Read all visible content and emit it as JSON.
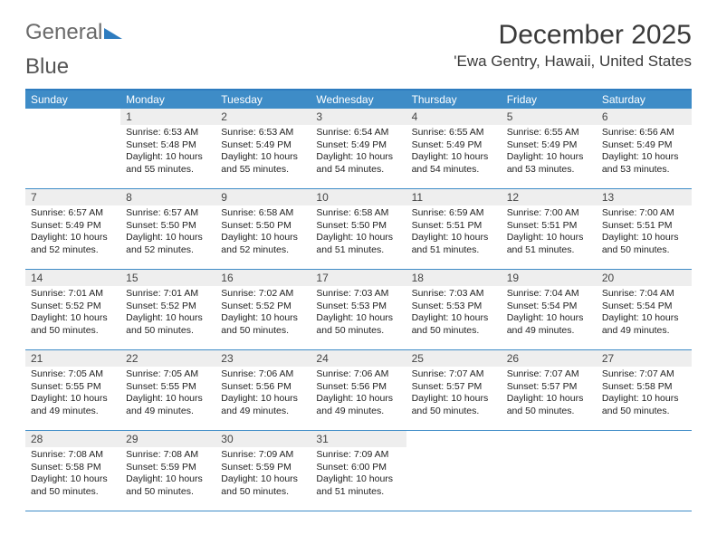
{
  "logo": {
    "text1": "General",
    "text2": "Blue"
  },
  "title": "December 2025",
  "location": "'Ewa Gentry, Hawaii, United States",
  "weekdays": [
    "Sunday",
    "Monday",
    "Tuesday",
    "Wednesday",
    "Thursday",
    "Friday",
    "Saturday"
  ],
  "colors": {
    "header_bg": "#3e8cc7",
    "header_text": "#ffffff",
    "daynum_bg": "#eeeeee",
    "border": "#3e8cc7",
    "page_bg": "#ffffff",
    "body_text": "#222222"
  },
  "weeks": [
    [
      {
        "n": "",
        "sr": "",
        "ss": "",
        "dl": ""
      },
      {
        "n": "1",
        "sr": "Sunrise: 6:53 AM",
        "ss": "Sunset: 5:48 PM",
        "dl": "Daylight: 10 hours and 55 minutes."
      },
      {
        "n": "2",
        "sr": "Sunrise: 6:53 AM",
        "ss": "Sunset: 5:49 PM",
        "dl": "Daylight: 10 hours and 55 minutes."
      },
      {
        "n": "3",
        "sr": "Sunrise: 6:54 AM",
        "ss": "Sunset: 5:49 PM",
        "dl": "Daylight: 10 hours and 54 minutes."
      },
      {
        "n": "4",
        "sr": "Sunrise: 6:55 AM",
        "ss": "Sunset: 5:49 PM",
        "dl": "Daylight: 10 hours and 54 minutes."
      },
      {
        "n": "5",
        "sr": "Sunrise: 6:55 AM",
        "ss": "Sunset: 5:49 PM",
        "dl": "Daylight: 10 hours and 53 minutes."
      },
      {
        "n": "6",
        "sr": "Sunrise: 6:56 AM",
        "ss": "Sunset: 5:49 PM",
        "dl": "Daylight: 10 hours and 53 minutes."
      }
    ],
    [
      {
        "n": "7",
        "sr": "Sunrise: 6:57 AM",
        "ss": "Sunset: 5:49 PM",
        "dl": "Daylight: 10 hours and 52 minutes."
      },
      {
        "n": "8",
        "sr": "Sunrise: 6:57 AM",
        "ss": "Sunset: 5:50 PM",
        "dl": "Daylight: 10 hours and 52 minutes."
      },
      {
        "n": "9",
        "sr": "Sunrise: 6:58 AM",
        "ss": "Sunset: 5:50 PM",
        "dl": "Daylight: 10 hours and 52 minutes."
      },
      {
        "n": "10",
        "sr": "Sunrise: 6:58 AM",
        "ss": "Sunset: 5:50 PM",
        "dl": "Daylight: 10 hours and 51 minutes."
      },
      {
        "n": "11",
        "sr": "Sunrise: 6:59 AM",
        "ss": "Sunset: 5:51 PM",
        "dl": "Daylight: 10 hours and 51 minutes."
      },
      {
        "n": "12",
        "sr": "Sunrise: 7:00 AM",
        "ss": "Sunset: 5:51 PM",
        "dl": "Daylight: 10 hours and 51 minutes."
      },
      {
        "n": "13",
        "sr": "Sunrise: 7:00 AM",
        "ss": "Sunset: 5:51 PM",
        "dl": "Daylight: 10 hours and 50 minutes."
      }
    ],
    [
      {
        "n": "14",
        "sr": "Sunrise: 7:01 AM",
        "ss": "Sunset: 5:52 PM",
        "dl": "Daylight: 10 hours and 50 minutes."
      },
      {
        "n": "15",
        "sr": "Sunrise: 7:01 AM",
        "ss": "Sunset: 5:52 PM",
        "dl": "Daylight: 10 hours and 50 minutes."
      },
      {
        "n": "16",
        "sr": "Sunrise: 7:02 AM",
        "ss": "Sunset: 5:52 PM",
        "dl": "Daylight: 10 hours and 50 minutes."
      },
      {
        "n": "17",
        "sr": "Sunrise: 7:03 AM",
        "ss": "Sunset: 5:53 PM",
        "dl": "Daylight: 10 hours and 50 minutes."
      },
      {
        "n": "18",
        "sr": "Sunrise: 7:03 AM",
        "ss": "Sunset: 5:53 PM",
        "dl": "Daylight: 10 hours and 50 minutes."
      },
      {
        "n": "19",
        "sr": "Sunrise: 7:04 AM",
        "ss": "Sunset: 5:54 PM",
        "dl": "Daylight: 10 hours and 49 minutes."
      },
      {
        "n": "20",
        "sr": "Sunrise: 7:04 AM",
        "ss": "Sunset: 5:54 PM",
        "dl": "Daylight: 10 hours and 49 minutes."
      }
    ],
    [
      {
        "n": "21",
        "sr": "Sunrise: 7:05 AM",
        "ss": "Sunset: 5:55 PM",
        "dl": "Daylight: 10 hours and 49 minutes."
      },
      {
        "n": "22",
        "sr": "Sunrise: 7:05 AM",
        "ss": "Sunset: 5:55 PM",
        "dl": "Daylight: 10 hours and 49 minutes."
      },
      {
        "n": "23",
        "sr": "Sunrise: 7:06 AM",
        "ss": "Sunset: 5:56 PM",
        "dl": "Daylight: 10 hours and 49 minutes."
      },
      {
        "n": "24",
        "sr": "Sunrise: 7:06 AM",
        "ss": "Sunset: 5:56 PM",
        "dl": "Daylight: 10 hours and 49 minutes."
      },
      {
        "n": "25",
        "sr": "Sunrise: 7:07 AM",
        "ss": "Sunset: 5:57 PM",
        "dl": "Daylight: 10 hours and 50 minutes."
      },
      {
        "n": "26",
        "sr": "Sunrise: 7:07 AM",
        "ss": "Sunset: 5:57 PM",
        "dl": "Daylight: 10 hours and 50 minutes."
      },
      {
        "n": "27",
        "sr": "Sunrise: 7:07 AM",
        "ss": "Sunset: 5:58 PM",
        "dl": "Daylight: 10 hours and 50 minutes."
      }
    ],
    [
      {
        "n": "28",
        "sr": "Sunrise: 7:08 AM",
        "ss": "Sunset: 5:58 PM",
        "dl": "Daylight: 10 hours and 50 minutes."
      },
      {
        "n": "29",
        "sr": "Sunrise: 7:08 AM",
        "ss": "Sunset: 5:59 PM",
        "dl": "Daylight: 10 hours and 50 minutes."
      },
      {
        "n": "30",
        "sr": "Sunrise: 7:09 AM",
        "ss": "Sunset: 5:59 PM",
        "dl": "Daylight: 10 hours and 50 minutes."
      },
      {
        "n": "31",
        "sr": "Sunrise: 7:09 AM",
        "ss": "Sunset: 6:00 PM",
        "dl": "Daylight: 10 hours and 51 minutes."
      },
      {
        "n": "",
        "sr": "",
        "ss": "",
        "dl": ""
      },
      {
        "n": "",
        "sr": "",
        "ss": "",
        "dl": ""
      },
      {
        "n": "",
        "sr": "",
        "ss": "",
        "dl": ""
      }
    ]
  ]
}
